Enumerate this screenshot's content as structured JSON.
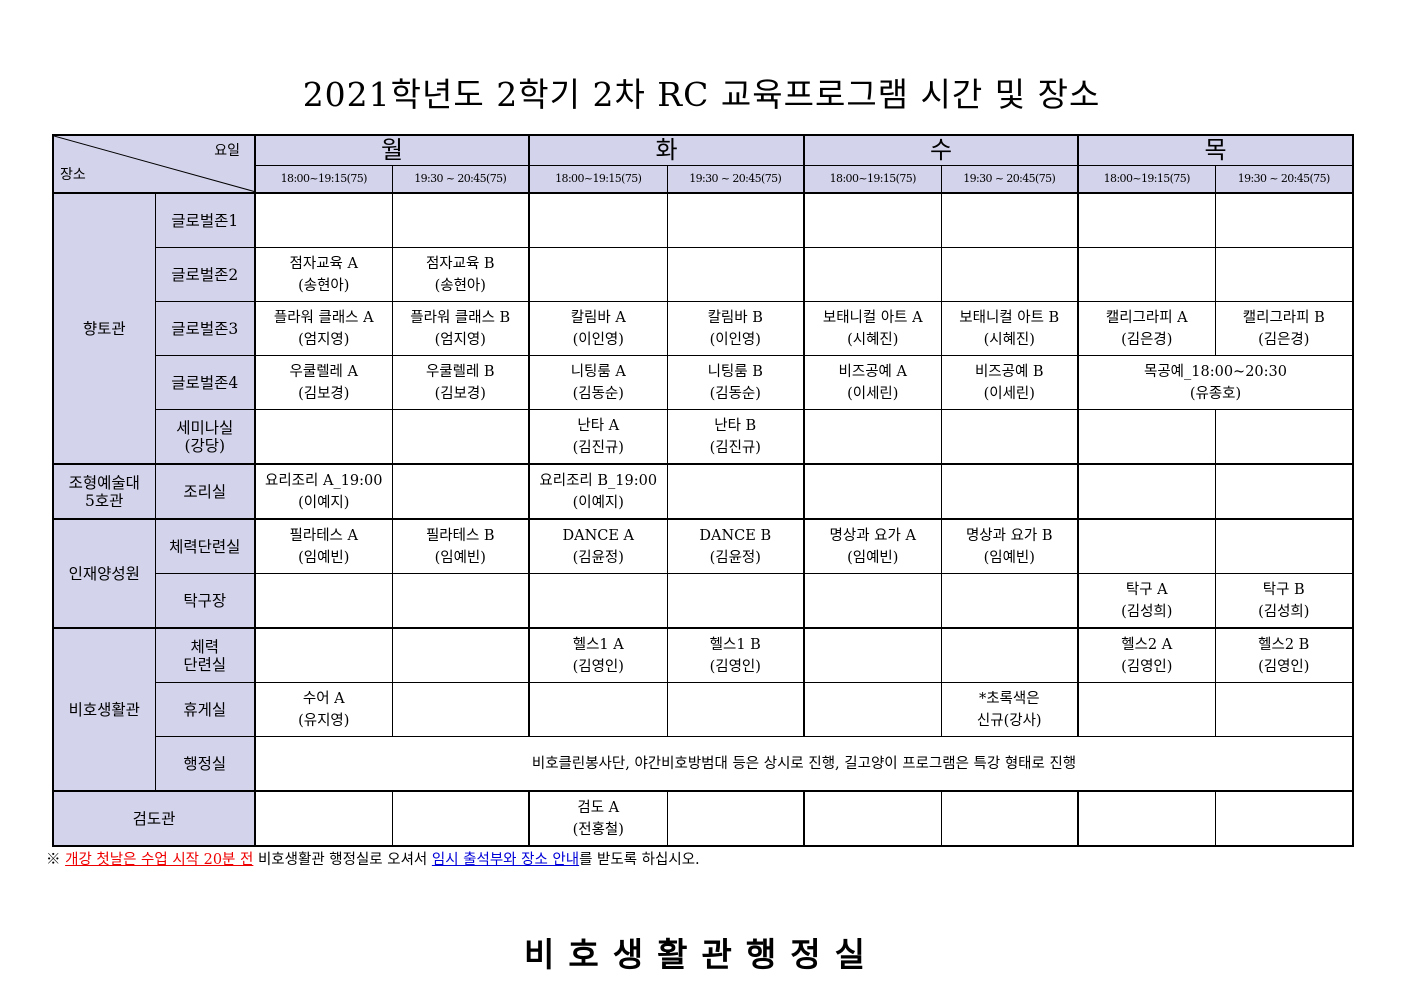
{
  "title": "2021학년도 2학기 2차 RC 교육프로그램 시간 및 장소",
  "header": {
    "day_label": "요일",
    "place_label": "장소",
    "days": [
      "월",
      "화",
      "수",
      "목"
    ],
    "slots": [
      "18:00~19:15(75)",
      "19:30 ~ 20:45(75)"
    ]
  },
  "groups": [
    {
      "building": "향토관",
      "rooms": [
        {
          "room": "글로벌존1",
          "cells": [
            null,
            null,
            null,
            null,
            null,
            null,
            null,
            null
          ]
        },
        {
          "room": "글로벌존2",
          "cells": [
            {
              "title": "점자교육 A",
              "teacher": "(송현아)"
            },
            {
              "title": "점자교육 B",
              "teacher": "(송현아)"
            },
            null,
            null,
            null,
            null,
            null,
            null
          ]
        },
        {
          "room": "글로벌존3",
          "cells": [
            {
              "title": "플라워 클래스 A",
              "teacher": "(엄지영)"
            },
            {
              "title": "플라워 클래스 B",
              "teacher": "(엄지영)"
            },
            {
              "title": "칼림바 A",
              "teacher": "(이인영)"
            },
            {
              "title": "칼림바 B",
              "teacher": "(이인영)"
            },
            {
              "title": "보태니컬 아트 A",
              "teacher": "(시혜진)"
            },
            {
              "title": "보태니컬 아트 B",
              "teacher": "(시혜진)"
            },
            {
              "title": "캘리그라피 A",
              "teacher": "(김은경)"
            },
            {
              "title": "캘리그라피 B",
              "teacher": "(김은경)"
            }
          ]
        },
        {
          "room": "글로벌존4",
          "cells": [
            {
              "title": "우쿨렐레 A",
              "teacher": "(김보경)"
            },
            {
              "title": "우쿨렐레 B",
              "teacher": "(김보경)"
            },
            {
              "title": "니팅룸 A",
              "teacher": "(김동순)"
            },
            {
              "title": "니팅룸 B",
              "teacher": "(김동순)"
            },
            {
              "title": "비즈공예 A",
              "teacher": "(이세린)"
            },
            {
              "title": "비즈공예 B",
              "teacher": "(이세린)"
            },
            {
              "title": "목공예_18:00~20:30",
              "teacher": "(유종호)",
              "colspan": 2
            }
          ]
        },
        {
          "room": "세미나실\n(강당)",
          "cells": [
            null,
            null,
            {
              "title": "난타 A",
              "teacher": "(김진규)"
            },
            {
              "title": "난타 B",
              "teacher": "(김진규)"
            },
            null,
            null,
            null,
            null
          ]
        }
      ]
    },
    {
      "building": "조형예술대\n5호관",
      "rooms": [
        {
          "room": "조리실",
          "cells": [
            {
              "title": "요리조리 A_19:00",
              "teacher": "(이예지)"
            },
            null,
            {
              "title": "요리조리 B_19:00",
              "teacher": "(이예지)"
            },
            null,
            null,
            null,
            null,
            null
          ]
        }
      ]
    },
    {
      "building": "인재양성원",
      "rooms": [
        {
          "room": "체력단련실",
          "cells": [
            {
              "title": "필라테스 A",
              "teacher": "(임예빈)"
            },
            {
              "title": "필라테스 B",
              "teacher": "(임예빈)"
            },
            {
              "title": "DANCE A",
              "teacher": "(김윤정)"
            },
            {
              "title": "DANCE B",
              "teacher": "(김윤정)"
            },
            {
              "title": "명상과 요가 A",
              "teacher": "(임예빈)"
            },
            {
              "title": "명상과 요가 B",
              "teacher": "(임예빈)"
            },
            null,
            null
          ]
        },
        {
          "room": "탁구장",
          "cells": [
            null,
            null,
            null,
            null,
            null,
            null,
            {
              "title": "탁구 A",
              "teacher": "(김성희)"
            },
            {
              "title": "탁구 B",
              "teacher": "(김성희)"
            }
          ]
        }
      ]
    },
    {
      "building": "비호생활관",
      "rooms": [
        {
          "room": "체력\n단련실",
          "cells": [
            null,
            null,
            {
              "title": "헬스1 A",
              "teacher": "(김영인)"
            },
            {
              "title": "헬스1 B",
              "teacher": "(김영인)"
            },
            null,
            null,
            {
              "title": "헬스2 A",
              "teacher": "(김영인)"
            },
            {
              "title": "헬스2 B",
              "teacher": "(김영인)"
            }
          ]
        },
        {
          "room": "휴게실",
          "cells": [
            {
              "title": "수어 A",
              "teacher": "(유지영)"
            },
            null,
            null,
            null,
            null,
            {
              "title": "*초록색은",
              "teacher": "신규(강사)"
            },
            null,
            null
          ]
        },
        {
          "room": "행정실",
          "cells": [
            {
              "title": "비호클린봉사단, 야간비호방범대 등은 상시로 진행, 길고양이 프로그램은 특강 형태로 진행",
              "teacher": "",
              "colspan": 8
            }
          ]
        }
      ]
    },
    {
      "building": "검도관",
      "rooms": [
        {
          "room": "",
          "cells": [
            null,
            null,
            {
              "title": "검도 A",
              "teacher": "(전홍철)"
            },
            null,
            null,
            null,
            null,
            null
          ]
        }
      ]
    }
  ],
  "footnote": {
    "mark": "※",
    "red_text": "개강 첫날은 수업 시작 20분 전",
    "middle_text": " 비호생활관 행정실로 오셔서 ",
    "blue_text": "임시 출석부와 장소 안내",
    "end_text": "를 받도록 하십시오.",
    "red_color": "#e00000",
    "blue_color": "#0000d8"
  },
  "office": "비호생활관행정실",
  "colors": {
    "header_bg": "#d3d3ec"
  }
}
